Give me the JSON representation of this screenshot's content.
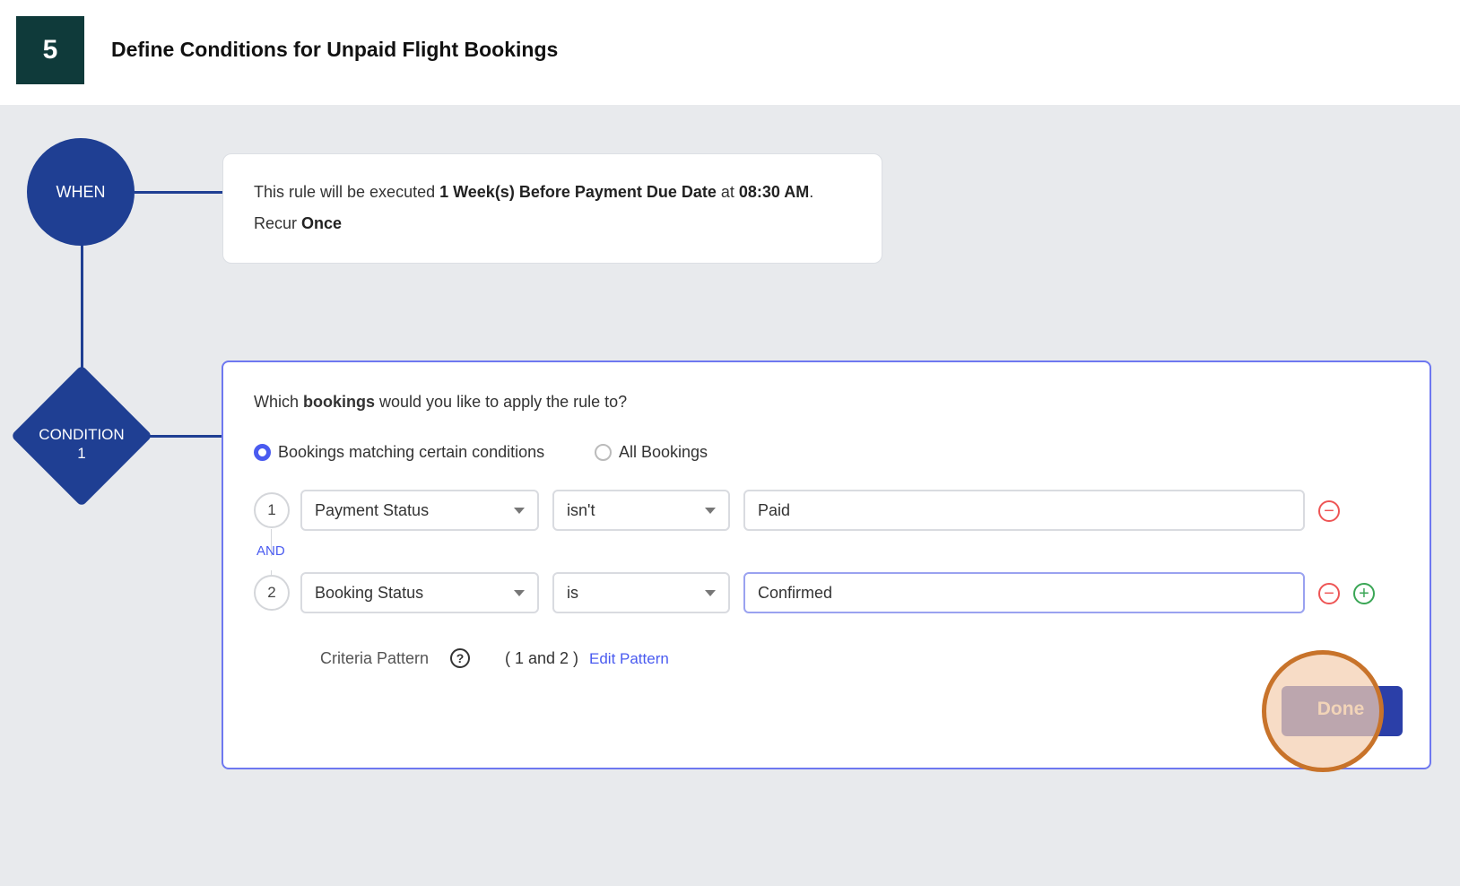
{
  "header": {
    "step": "5",
    "title": "Define Conditions for Unpaid Flight Bookings"
  },
  "flow": {
    "when_label": "WHEN",
    "condition_label": "CONDITION",
    "condition_number": "1"
  },
  "when_card": {
    "prefix": "This rule will be executed ",
    "schedule": "1 Week(s) Before Payment Due Date",
    "at": " at ",
    "time": "08:30 AM",
    "end": ".",
    "recur_label": "Recur ",
    "recur_value": "Once"
  },
  "condition_card": {
    "q_prefix": "Which ",
    "q_bold": "bookings",
    "q_suffix": " would you like to apply the rule to?",
    "radio_options": [
      {
        "label": "Bookings matching certain conditions",
        "selected": true
      },
      {
        "label": "All Bookings",
        "selected": false
      }
    ],
    "rows": [
      {
        "number": "1",
        "field": "Payment Status",
        "operator": "isn't",
        "value": "Paid"
      },
      {
        "number": "2",
        "field": "Booking Status",
        "operator": "is",
        "value": "Confirmed"
      }
    ],
    "connector": "AND",
    "criteria_label": "Criteria Pattern",
    "help_glyph": "?",
    "pattern": "( 1 and 2 )",
    "edit_pattern": "Edit Pattern",
    "done": "Done"
  },
  "colors": {
    "accent": "#1f3f93",
    "link": "#4a5bf0",
    "remove": "#e55555",
    "add": "#3aa655",
    "highlight": "#c8732a"
  }
}
